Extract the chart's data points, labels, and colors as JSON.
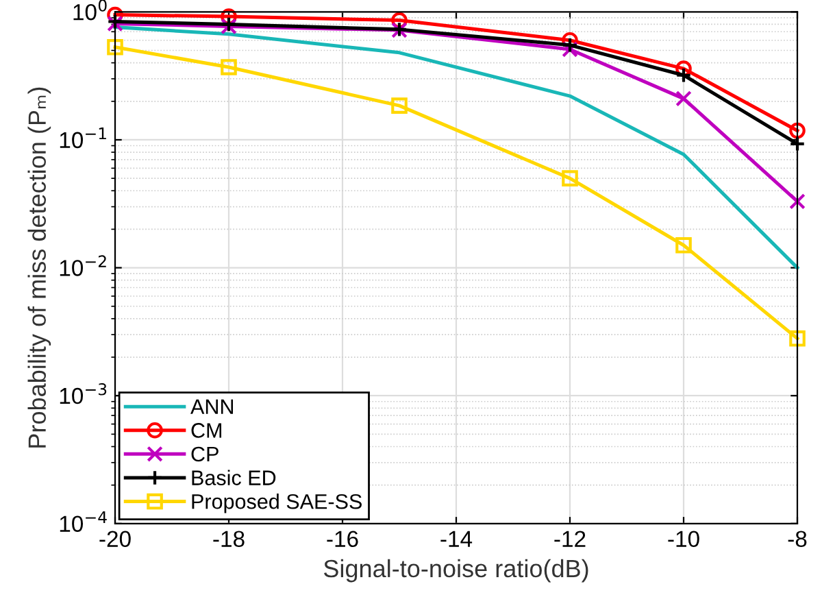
{
  "chart_data": {
    "type": "line",
    "xlabel": "Signal-to-noise ratio(dB)",
    "ylabel": "Probability of miss detection (Pₘ)",
    "x": [
      -20,
      -18,
      -15,
      -12,
      -10,
      -8
    ],
    "log": "y",
    "xlim": [
      -20,
      -8
    ],
    "xticks": [
      -20,
      -18,
      -16,
      -14,
      -12,
      -10,
      -8
    ],
    "ylim": [
      0.0001,
      1
    ],
    "yticks": [
      {
        "value": 0.0001,
        "label": "10$^{−4}$"
      },
      {
        "value": 0.001,
        "label": "10$^{−3}$"
      },
      {
        "value": 0.01,
        "label": "10$^{−2}$"
      },
      {
        "value": 0.1,
        "label": "10$^{−1}$"
      },
      {
        "value": 1,
        "label": "10$^{0}$"
      }
    ],
    "grid": true,
    "legend": "bottom left",
    "series": [
      {
        "name": "ANN",
        "color": "#19b7b7",
        "marker": "none",
        "values": [
          0.76,
          0.67,
          0.48,
          0.22,
          0.077,
          0.01
        ]
      },
      {
        "name": "CM",
        "color": "#ff0000",
        "marker": "circle",
        "values": [
          0.95,
          0.92,
          0.86,
          0.6,
          0.36,
          0.118
        ]
      },
      {
        "name": "CP",
        "color": "#bf00bf",
        "marker": "cross",
        "values": [
          0.81,
          0.77,
          0.72,
          0.51,
          0.21,
          0.033
        ]
      },
      {
        "name": "Basic ED",
        "color": "#000000",
        "marker": "plus",
        "values": [
          0.84,
          0.8,
          0.73,
          0.55,
          0.32,
          0.093
        ]
      },
      {
        "name": "Proposed SAE-SS",
        "color": "#ffd700",
        "marker": "square",
        "values": [
          0.53,
          0.37,
          0.185,
          0.05,
          0.015,
          0.0028
        ]
      }
    ]
  }
}
